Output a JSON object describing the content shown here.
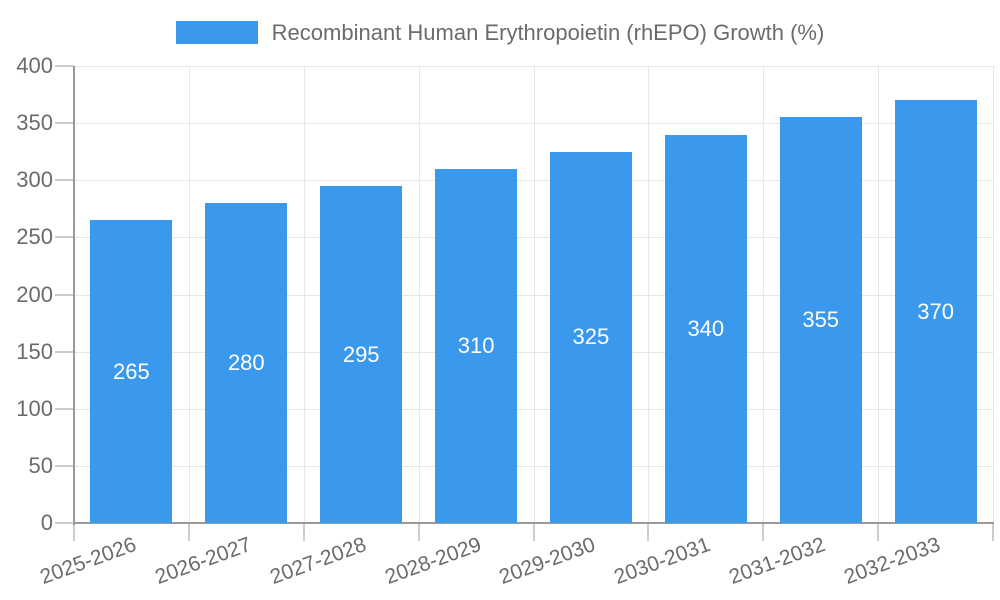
{
  "chart_data": {
    "type": "bar",
    "title": "Recombinant Human Erythropoietin (rhEPO) Growth (%)",
    "legend": [
      {
        "label": "Recombinant Human Erythropoietin (rhEPO) Growth (%)",
        "color": "#3a99ec"
      }
    ],
    "legend_position": "top",
    "categories": [
      "2025-2026",
      "2026-2027",
      "2027-2028",
      "2028-2029",
      "2029-2030",
      "2030-2031",
      "2031-2032",
      "2032-2033"
    ],
    "values": [
      265,
      280,
      295,
      310,
      325,
      340,
      355,
      370
    ],
    "value_labels": [
      "265",
      "280",
      "295",
      "310",
      "325",
      "340",
      "355",
      "370"
    ],
    "ytick_labels": [
      "0",
      "50",
      "100",
      "150",
      "200",
      "250",
      "300",
      "350",
      "400"
    ],
    "ylim": [
      0,
      400
    ],
    "ytick_step": 50,
    "xlabel": "",
    "ylabel": "",
    "grid": true,
    "colors": {
      "bar": "#3a99ec",
      "value_label": "#ffffff",
      "axis_line": "#9a9a9a",
      "grid_line": "#e6e6e6",
      "tick_line": "#cccccc",
      "label_text": "#6b6b6b"
    }
  }
}
